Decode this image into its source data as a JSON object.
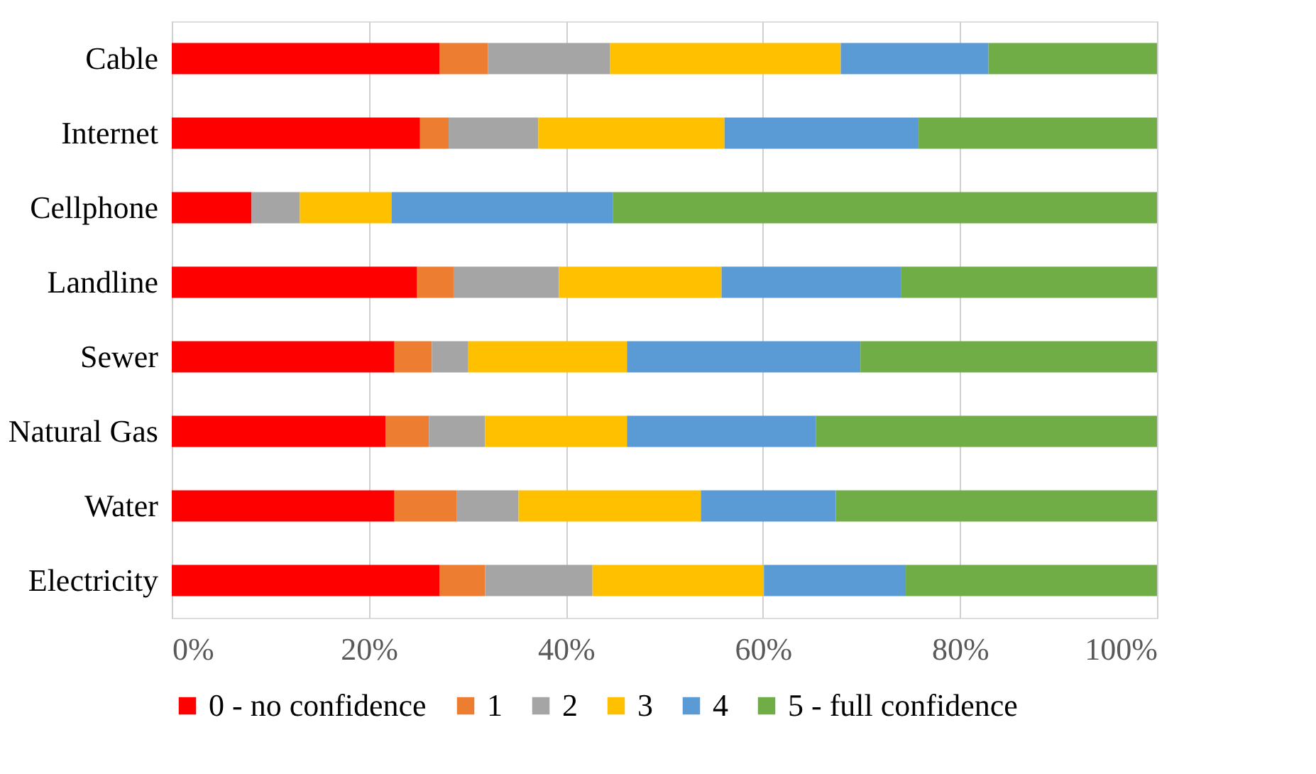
{
  "chart_data": {
    "type": "bar",
    "orientation": "horizontal",
    "stacked": true,
    "categories": [
      "Cable",
      "Internet",
      "Cellphone",
      "Landline",
      "Sewer",
      "Natural Gas",
      "Water",
      "Electricity"
    ],
    "series": [
      {
        "name": "0 - no confidence",
        "color": "#ff0000",
        "values": [
          27.2,
          25.2,
          8.1,
          24.9,
          22.6,
          21.7,
          22.6,
          27.2
        ]
      },
      {
        "name": "1",
        "color": "#ed7d31",
        "values": [
          4.9,
          2.9,
          0,
          3.7,
          3.8,
          4.4,
          6.3,
          4.6
        ]
      },
      {
        "name": "2",
        "color": "#a5a5a5",
        "values": [
          12.4,
          9.1,
          4.9,
          10.7,
          3.7,
          5.7,
          6.3,
          10.9
        ]
      },
      {
        "name": "3",
        "color": "#ffc000",
        "values": [
          23.4,
          18.9,
          9.3,
          16.5,
          16.1,
          14.4,
          18.5,
          17.4
        ]
      },
      {
        "name": "4",
        "color": "#5b9bd5",
        "values": [
          15.0,
          19.7,
          22.5,
          18.2,
          23.7,
          19.2,
          13.7,
          14.4
        ]
      },
      {
        "name": "5 - full confidence",
        "color": "#70ad47",
        "values": [
          17.1,
          24.2,
          55.2,
          26.0,
          30.1,
          34.6,
          32.6,
          25.5
        ]
      }
    ],
    "xlim": [
      0,
      100
    ],
    "xticks": [
      {
        "value": 0,
        "label": "0%"
      },
      {
        "value": 20,
        "label": "20%"
      },
      {
        "value": 40,
        "label": "40%"
      },
      {
        "value": 60,
        "label": "60%"
      },
      {
        "value": 80,
        "label": "80%"
      },
      {
        "value": 100,
        "label": "100%"
      }
    ],
    "grid": "x",
    "legend": "bottom"
  }
}
